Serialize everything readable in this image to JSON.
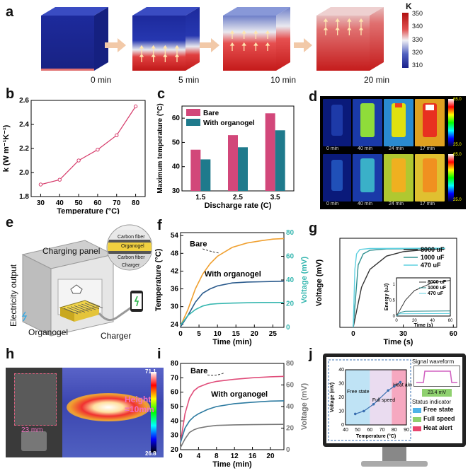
{
  "panels": {
    "a": "a",
    "b": "b",
    "c": "c",
    "d": "d",
    "e": "e",
    "f": "f",
    "g": "g",
    "h": "h",
    "i": "i",
    "j": "j"
  },
  "panel_a": {
    "times": [
      "0 min",
      "5 min",
      "10 min",
      "20 min"
    ],
    "colorbar_unit": "K",
    "colorbar_ticks": [
      "350",
      "340",
      "330",
      "320",
      "310"
    ]
  },
  "panel_d": {
    "top_times": [
      "0 min",
      "40 min",
      "24 min",
      "17 min"
    ],
    "bottom_times": [
      "0 min",
      "40 min",
      "24 min",
      "17 min"
    ],
    "scale_max": "65.0",
    "scale_min": "25.0"
  },
  "panel_e": {
    "electricity_output": "Electricity output",
    "charging_panel": "Charging panel",
    "organogel": "Organogel",
    "charger": "Charger",
    "layers": [
      "Carbon fiber",
      "Organogel",
      "Carbon fiber",
      "Charger"
    ]
  },
  "panel_h": {
    "width_label": "23 mm",
    "height_label": "Height\n=10mm",
    "scale_max": "71.1",
    "scale_min": "26.8"
  },
  "panel_j": {
    "signal_title": "Signal waveform",
    "voltage_badge": "23.4 mV",
    "status_title": "Status indicator",
    "legend": [
      {
        "label": "Free state",
        "color": "#4fb3e8"
      },
      {
        "label": "Full speed",
        "color": "#8fd16f"
      },
      {
        "label": "Heat alert",
        "color": "#e8476f"
      }
    ],
    "inner_zones": [
      "Free state",
      "Full speed",
      "Heat alert"
    ],
    "xlabel": "Temperature (°C)",
    "ylabel": "Voltage (mV)",
    "xticks": [
      "40",
      "50",
      "60",
      "70",
      "80",
      "90"
    ],
    "yticks": [
      "0",
      "10",
      "20",
      "30",
      "40"
    ]
  },
  "chart_data": [
    {
      "panel": "b",
      "type": "line",
      "title": "",
      "xlabel": "Temperature (°C)",
      "ylabel": "k (W m⁻¹K⁻¹)",
      "x": [
        30,
        40,
        50,
        60,
        70,
        80
      ],
      "y": [
        1.9,
        1.94,
        2.1,
        2.19,
        2.31,
        2.55
      ],
      "xlim": [
        25,
        85
      ],
      "ylim": [
        1.8,
        2.6
      ],
      "xticks": [
        30,
        40,
        50,
        60,
        70,
        80
      ],
      "yticks": [
        1.8,
        2.0,
        2.2,
        2.4,
        2.6
      ],
      "color": "#d63a6a"
    },
    {
      "panel": "c",
      "type": "bar",
      "xlabel": "Discharge rate (C)",
      "ylabel": "Maximum temperature (°C)",
      "categories": [
        "1.5",
        "2.5",
        "3.5"
      ],
      "series": [
        {
          "name": "Bare",
          "values": [
            47,
            53,
            62
          ],
          "color": "#d2477a"
        },
        {
          "name": "With organogel",
          "values": [
            43,
            48,
            55
          ],
          "color": "#1f7a8c"
        }
      ],
      "ylim": [
        30,
        65
      ],
      "yticks": [
        30,
        40,
        50,
        60
      ]
    },
    {
      "panel": "f",
      "type": "line",
      "xlabel": "Time (min)",
      "ylabel": "Temperature (°C)",
      "ylabel2": "Voltage (mV)",
      "xlim": [
        0,
        28
      ],
      "ylim": [
        23,
        55
      ],
      "ylim2": [
        0,
        80
      ],
      "xticks": [
        0,
        5,
        10,
        15,
        20,
        25
      ],
      "yticks": [
        24,
        30,
        36,
        42,
        48,
        54
      ],
      "yticks2": [
        0,
        20,
        40,
        60,
        80
      ],
      "annotations": [
        "Bare",
        "With organogel"
      ],
      "series": [
        {
          "name": "Bare",
          "axis": "left",
          "color": "#f0a030",
          "x": [
            0,
            2,
            4,
            6,
            8,
            10,
            14,
            18,
            22,
            25,
            28
          ],
          "y": [
            23.5,
            29,
            36,
            41,
            44.5,
            47,
            50,
            51.5,
            52.3,
            52.8,
            53
          ]
        },
        {
          "name": "With organogel",
          "axis": "left",
          "color": "#2a5a8c",
          "x": [
            0,
            2,
            4,
            6,
            8,
            10,
            14,
            18,
            22,
            25,
            28
          ],
          "y": [
            23.2,
            27,
            31.5,
            34.5,
            36,
            37,
            38,
            38.3,
            38.4,
            38.5,
            38.6
          ]
        },
        {
          "name": "Voltage",
          "axis": "right",
          "color": "#37b7b0",
          "x": [
            0,
            2,
            4,
            6,
            8,
            10,
            14,
            18,
            22,
            25,
            28
          ],
          "y": [
            2,
            10,
            15,
            18,
            19.5,
            20,
            20.5,
            20.8,
            21,
            21,
            21
          ]
        }
      ]
    },
    {
      "panel": "g",
      "type": "line",
      "xlabel": "Time (s)",
      "ylabel": "Voltage (mV)",
      "xlim": [
        -8,
        62
      ],
      "ylim": [
        0,
        20
      ],
      "xticks": [
        0,
        30,
        60
      ],
      "legend": [
        "8000 uF",
        "1000 uF",
        "470 uF"
      ],
      "series": [
        {
          "name": "8000 uF",
          "color": "#333333",
          "x": [
            0,
            5,
            10,
            20,
            30,
            45,
            55
          ],
          "y": [
            0,
            9,
            13,
            16,
            17,
            17.5,
            17.6
          ]
        },
        {
          "name": "1000 uF",
          "color": "#2e8f8f",
          "x": [
            0,
            3,
            6,
            10,
            20,
            55
          ],
          "y": [
            0,
            14,
            16.5,
            17.3,
            17.6,
            17.7
          ]
        },
        {
          "name": "470 uF",
          "color": "#5fd0e0",
          "x": [
            0,
            1,
            2,
            4,
            10,
            55
          ],
          "y": [
            0,
            13,
            16.5,
            17.5,
            17.7,
            17.8
          ]
        }
      ],
      "inset": {
        "xlabel": "Time (s)",
        "ylabel": "Energy (uJ)",
        "xticks": [
          0,
          20,
          40,
          60
        ],
        "yticks": [
          0,
          0.5,
          1
        ],
        "series": [
          {
            "name": "8000 uF",
            "x": [
              0,
              10,
              20,
              40,
              60
            ],
            "y": [
              0,
              0.5,
              0.8,
              1.05,
              1.12
            ]
          },
          {
            "name": "1000 uF",
            "x": [
              0,
              5,
              10,
              60
            ],
            "y": [
              0,
              0.12,
              0.15,
              0.16
            ]
          },
          {
            "name": "470 uF",
            "x": [
              0,
              3,
              60
            ],
            "y": [
              0,
              0.07,
              0.08
            ]
          }
        ]
      }
    },
    {
      "panel": "i",
      "type": "line",
      "xlabel": "Time (min)",
      "ylabel": "Temperature (°C)",
      "ylabel2": "Voltage (mV)",
      "xlim": [
        0,
        23
      ],
      "ylim": [
        20,
        80
      ],
      "ylim2": [
        0,
        80
      ],
      "xticks": [
        0,
        4,
        8,
        12,
        16,
        20
      ],
      "yticks": [
        20,
        30,
        40,
        50,
        60,
        70,
        80
      ],
      "yticks2": [
        0,
        20,
        40,
        60,
        80
      ],
      "annotations": [
        "Bare",
        "With organogel"
      ],
      "series": [
        {
          "name": "Bare",
          "axis": "left",
          "color": "#e04d7a",
          "x": [
            0,
            1,
            2,
            3,
            4,
            6,
            8,
            12,
            16,
            20,
            23
          ],
          "y": [
            25,
            45,
            56,
            61,
            63.5,
            66,
            67.5,
            69,
            70,
            70.7,
            71
          ]
        },
        {
          "name": "With organogel",
          "axis": "left",
          "color": "#2c7aa0",
          "x": [
            0,
            1,
            2,
            3,
            4,
            6,
            8,
            12,
            16,
            20,
            23
          ],
          "y": [
            25,
            35,
            40,
            43,
            45,
            48,
            50,
            52,
            53,
            53.8,
            54
          ]
        },
        {
          "name": "Voltage",
          "axis": "right",
          "color": "#777777",
          "x": [
            0,
            1,
            2,
            3,
            4,
            6,
            8,
            12,
            16,
            20,
            23
          ],
          "y": [
            2,
            10,
            16,
            18.5,
            20,
            21.5,
            22.5,
            23,
            23.2,
            23.4,
            23.5
          ]
        }
      ]
    }
  ]
}
